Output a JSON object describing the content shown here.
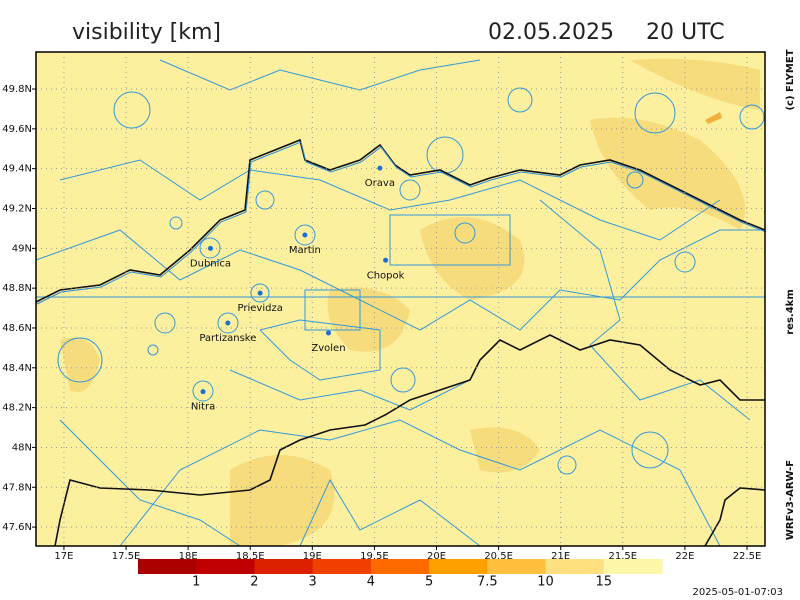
{
  "header": {
    "title": "visibility [km]",
    "date": "02.05.2025",
    "time": "20 UTC"
  },
  "map": {
    "lon_range": [
      16.775,
      22.645
    ],
    "lat_range": [
      47.505,
      49.986
    ],
    "lon_ticks": [
      {
        "value": 17,
        "label": "17E"
      },
      {
        "value": 17.5,
        "label": "17.5E"
      },
      {
        "value": 18,
        "label": "18E"
      },
      {
        "value": 18.5,
        "label": "18.5E"
      },
      {
        "value": 19,
        "label": "19E"
      },
      {
        "value": 19.5,
        "label": "19.5E"
      },
      {
        "value": 20,
        "label": "20E"
      },
      {
        "value": 20.5,
        "label": "20.5E"
      },
      {
        "value": 21,
        "label": "21E"
      },
      {
        "value": 21.5,
        "label": "21.5E"
      },
      {
        "value": 22,
        "label": "22E"
      },
      {
        "value": 22.5,
        "label": "22.5E"
      }
    ],
    "lat_ticks": [
      {
        "value": 47.6,
        "label": "47.6N"
      },
      {
        "value": 47.8,
        "label": "47.8N"
      },
      {
        "value": 48,
        "label": "48N"
      },
      {
        "value": 48.2,
        "label": "48.2N"
      },
      {
        "value": 48.4,
        "label": "48.4N"
      },
      {
        "value": 48.6,
        "label": "48.6N"
      },
      {
        "value": 48.8,
        "label": "48.8N"
      },
      {
        "value": 49,
        "label": "49N"
      },
      {
        "value": 49.2,
        "label": "49.2N"
      },
      {
        "value": 49.4,
        "label": "49.4N"
      },
      {
        "value": 49.6,
        "label": "49.6N"
      },
      {
        "value": 49.8,
        "label": "49.8N"
      }
    ],
    "cities": [
      {
        "name": "Orava",
        "lon": 19.544,
        "lat": 49.403
      },
      {
        "name": "Martin",
        "lon": 18.94,
        "lat": 49.067
      },
      {
        "name": "Dubnica",
        "lon": 18.18,
        "lat": 49.0
      },
      {
        "name": "Chopok",
        "lon": 19.59,
        "lat": 48.94
      },
      {
        "name": "Prievidza",
        "lon": 18.58,
        "lat": 48.775
      },
      {
        "name": "Partizanske",
        "lon": 18.32,
        "lat": 48.625
      },
      {
        "name": "Zvolen",
        "lon": 19.13,
        "lat": 48.575
      },
      {
        "name": "Nitra",
        "lon": 18.12,
        "lat": 48.28
      }
    ]
  },
  "colorbar": {
    "colors": [
      "#aa0000",
      "#c00000",
      "#dc2000",
      "#f04000",
      "#ff6a00",
      "#ffa000",
      "#ffc040",
      "#ffe080",
      "#fef6a8"
    ],
    "labels": [
      1,
      2,
      3,
      4,
      5,
      7.5,
      10,
      15
    ]
  },
  "side": {
    "copyright": "(c) FLYMET",
    "resolution": "res.4km",
    "model": "WRFv3-ARW-F"
  },
  "footer": {
    "timestamp": "2025-05-01-07:03"
  }
}
